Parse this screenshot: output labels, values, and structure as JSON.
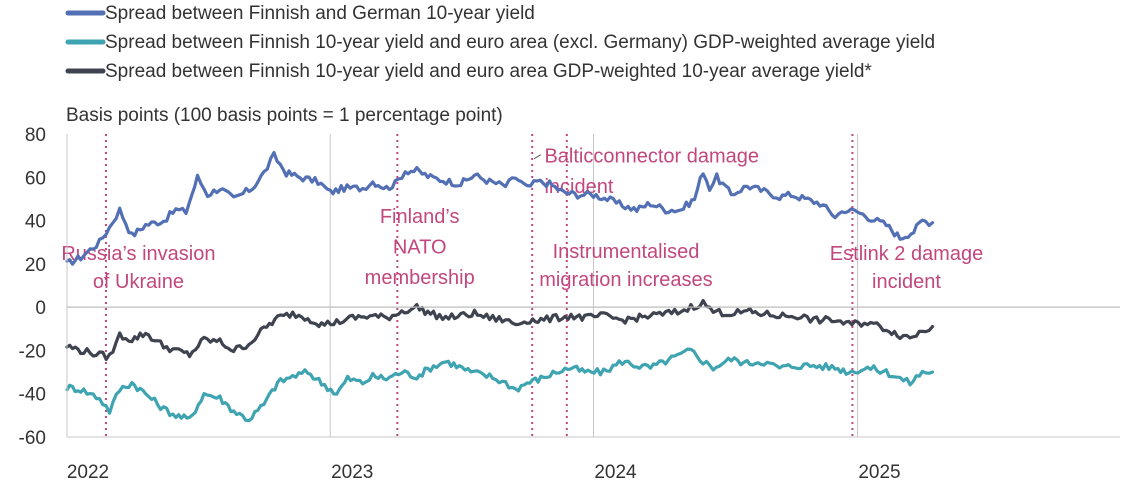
{
  "colors": {
    "de_spread": "#5470b5",
    "ea_ex_de_spread": "#3fa4b1",
    "ea_spread": "#3f4350",
    "event": "#c2477e",
    "axis": "#333333",
    "grid": "#c7c7c7"
  },
  "chart_data": {
    "type": "line",
    "unit_label": "Basis points (100 basis points = 1 percentage point)",
    "ylim": [
      -60,
      80
    ],
    "yticks": [
      "80",
      "60",
      "40",
      "20",
      "0",
      "-20",
      "-40",
      "-60"
    ],
    "xlim": [
      "2022-01-01",
      "2025-12-31"
    ],
    "xticks": [
      "2022",
      "2023",
      "2024",
      "2025"
    ],
    "legend_position": "top",
    "grid": "vertical year lines",
    "series": [
      {
        "name": "Spread between Finnish and German 10-year yield",
        "color": "#5470b5",
        "points": [
          [
            "2022-01-01",
            20
          ],
          [
            "2022-01-20",
            23
          ],
          [
            "2022-02-15",
            30
          ],
          [
            "2022-03-01",
            37
          ],
          [
            "2022-03-15",
            45
          ],
          [
            "2022-04-01",
            33
          ],
          [
            "2022-04-20",
            38
          ],
          [
            "2022-05-15",
            40
          ],
          [
            "2022-06-01",
            45
          ],
          [
            "2022-06-15",
            44
          ],
          [
            "2022-07-01",
            60
          ],
          [
            "2022-07-15",
            52
          ],
          [
            "2022-08-01",
            55
          ],
          [
            "2022-08-20",
            50
          ],
          [
            "2022-09-15",
            55
          ],
          [
            "2022-10-01",
            62
          ],
          [
            "2022-10-15",
            70
          ],
          [
            "2022-11-01",
            62
          ],
          [
            "2022-11-20",
            60
          ],
          [
            "2022-12-15",
            58
          ],
          [
            "2023-01-01",
            53
          ],
          [
            "2023-01-20",
            55
          ],
          [
            "2023-02-15",
            55
          ],
          [
            "2023-03-01",
            58
          ],
          [
            "2023-03-20",
            55
          ],
          [
            "2023-04-01",
            57
          ],
          [
            "2023-04-15",
            63
          ],
          [
            "2023-05-01",
            63
          ],
          [
            "2023-05-20",
            60
          ],
          [
            "2023-06-15",
            58
          ],
          [
            "2023-07-01",
            57
          ],
          [
            "2023-07-20",
            61
          ],
          [
            "2023-08-10",
            58
          ],
          [
            "2023-09-01",
            56
          ],
          [
            "2023-09-15",
            60
          ],
          [
            "2023-10-01",
            55
          ],
          [
            "2023-10-15",
            58
          ],
          [
            "2023-11-01",
            57
          ],
          [
            "2023-11-20",
            53
          ],
          [
            "2023-12-10",
            52
          ],
          [
            "2024-01-01",
            52
          ],
          [
            "2024-01-20",
            50
          ],
          [
            "2024-02-10",
            47
          ],
          [
            "2024-03-01",
            45
          ],
          [
            "2024-03-20",
            48
          ],
          [
            "2024-04-10",
            45
          ],
          [
            "2024-05-01",
            45
          ],
          [
            "2024-05-20",
            50
          ],
          [
            "2024-06-01",
            63
          ],
          [
            "2024-06-10",
            55
          ],
          [
            "2024-06-20",
            60
          ],
          [
            "2024-07-10",
            52
          ],
          [
            "2024-08-01",
            56
          ],
          [
            "2024-08-20",
            54
          ],
          [
            "2024-09-15",
            51
          ],
          [
            "2024-10-01",
            52
          ],
          [
            "2024-10-20",
            50
          ],
          [
            "2024-11-10",
            48
          ],
          [
            "2024-12-01",
            42
          ],
          [
            "2024-12-15",
            45
          ],
          [
            "2025-01-01",
            44
          ],
          [
            "2025-01-20",
            41
          ],
          [
            "2025-02-10",
            38
          ],
          [
            "2025-03-01",
            32
          ],
          [
            "2025-03-20",
            35
          ],
          [
            "2025-04-01",
            40
          ],
          [
            "2025-04-15",
            39
          ]
        ]
      },
      {
        "name": "Spread between Finnish 10-year yield and euro area (excl. Germany) GDP-weighted average yield",
        "color": "#3fa4b1",
        "points": [
          [
            "2022-01-01",
            -37
          ],
          [
            "2022-01-20",
            -38
          ],
          [
            "2022-02-15",
            -42
          ],
          [
            "2022-03-01",
            -48
          ],
          [
            "2022-03-15",
            -38
          ],
          [
            "2022-04-01",
            -35
          ],
          [
            "2022-04-20",
            -40
          ],
          [
            "2022-05-15",
            -47
          ],
          [
            "2022-06-01",
            -50
          ],
          [
            "2022-06-20",
            -52
          ],
          [
            "2022-07-10",
            -40
          ],
          [
            "2022-08-01",
            -42
          ],
          [
            "2022-08-20",
            -48
          ],
          [
            "2022-09-10",
            -52
          ],
          [
            "2022-10-01",
            -45
          ],
          [
            "2022-10-20",
            -35
          ],
          [
            "2022-11-10",
            -32
          ],
          [
            "2022-12-01",
            -30
          ],
          [
            "2022-12-20",
            -35
          ],
          [
            "2023-01-10",
            -40
          ],
          [
            "2023-01-25",
            -33
          ],
          [
            "2023-02-15",
            -35
          ],
          [
            "2023-03-01",
            -32
          ],
          [
            "2023-03-20",
            -33
          ],
          [
            "2023-04-10",
            -30
          ],
          [
            "2023-05-01",
            -32
          ],
          [
            "2023-05-20",
            -28
          ],
          [
            "2023-06-10",
            -25
          ],
          [
            "2023-06-25",
            -27
          ],
          [
            "2023-07-15",
            -30
          ],
          [
            "2023-08-10",
            -32
          ],
          [
            "2023-09-01",
            -35
          ],
          [
            "2023-09-15",
            -38
          ],
          [
            "2023-10-01",
            -35
          ],
          [
            "2023-10-20",
            -33
          ],
          [
            "2023-11-10",
            -30
          ],
          [
            "2023-12-01",
            -28
          ],
          [
            "2023-12-20",
            -30
          ],
          [
            "2024-01-15",
            -30
          ],
          [
            "2024-02-10",
            -25
          ],
          [
            "2024-03-01",
            -27
          ],
          [
            "2024-03-20",
            -28
          ],
          [
            "2024-04-10",
            -25
          ],
          [
            "2024-05-01",
            -22
          ],
          [
            "2024-05-15",
            -20
          ],
          [
            "2024-06-01",
            -25
          ],
          [
            "2024-06-15",
            -28
          ],
          [
            "2024-07-10",
            -24
          ],
          [
            "2024-08-01",
            -26
          ],
          [
            "2024-08-20",
            -25
          ],
          [
            "2024-09-15",
            -28
          ],
          [
            "2024-10-10",
            -27
          ],
          [
            "2024-11-01",
            -27
          ],
          [
            "2024-12-01",
            -28
          ],
          [
            "2024-12-20",
            -30
          ],
          [
            "2025-01-15",
            -28
          ],
          [
            "2025-02-10",
            -30
          ],
          [
            "2025-03-01",
            -33
          ],
          [
            "2025-03-15",
            -35
          ],
          [
            "2025-04-01",
            -30
          ],
          [
            "2025-04-15",
            -30
          ]
        ]
      },
      {
        "name": "Spread between Finnish 10-year yield and euro area GDP-weighted 10-year average yield*",
        "color": "#3f4350",
        "points": [
          [
            "2022-01-01",
            -18
          ],
          [
            "2022-01-20",
            -20
          ],
          [
            "2022-02-15",
            -22
          ],
          [
            "2022-03-01",
            -23
          ],
          [
            "2022-03-15",
            -13
          ],
          [
            "2022-04-01",
            -15
          ],
          [
            "2022-04-20",
            -12
          ],
          [
            "2022-05-15",
            -18
          ],
          [
            "2022-06-01",
            -20
          ],
          [
            "2022-06-20",
            -22
          ],
          [
            "2022-07-10",
            -15
          ],
          [
            "2022-08-01",
            -16
          ],
          [
            "2022-08-20",
            -20
          ],
          [
            "2022-09-10",
            -17
          ],
          [
            "2022-10-01",
            -10
          ],
          [
            "2022-10-20",
            -5
          ],
          [
            "2022-11-10",
            -3
          ],
          [
            "2022-12-01",
            -5
          ],
          [
            "2022-12-20",
            -8
          ],
          [
            "2023-01-10",
            -7
          ],
          [
            "2023-02-01",
            -5
          ],
          [
            "2023-03-01",
            -4
          ],
          [
            "2023-03-20",
            -5
          ],
          [
            "2023-04-10",
            -2
          ],
          [
            "2023-05-01",
            0
          ],
          [
            "2023-05-20",
            -3
          ],
          [
            "2023-06-10",
            -5
          ],
          [
            "2023-07-01",
            -4
          ],
          [
            "2023-07-20",
            -3
          ],
          [
            "2023-08-10",
            -5
          ],
          [
            "2023-09-01",
            -6
          ],
          [
            "2023-09-15",
            -8
          ],
          [
            "2023-10-01",
            -6
          ],
          [
            "2023-10-20",
            -6
          ],
          [
            "2023-11-10",
            -5
          ],
          [
            "2023-12-01",
            -4
          ],
          [
            "2023-12-20",
            -5
          ],
          [
            "2024-01-15",
            -4
          ],
          [
            "2024-02-10",
            -6
          ],
          [
            "2024-03-01",
            -5
          ],
          [
            "2024-03-20",
            -4
          ],
          [
            "2024-04-10",
            -3
          ],
          [
            "2024-05-01",
            -2
          ],
          [
            "2024-05-15",
            0
          ],
          [
            "2024-06-01",
            2
          ],
          [
            "2024-06-15",
            -2
          ],
          [
            "2024-07-10",
            -3
          ],
          [
            "2024-08-01",
            -2
          ],
          [
            "2024-08-20",
            -3
          ],
          [
            "2024-09-15",
            -4
          ],
          [
            "2024-10-10",
            -4
          ],
          [
            "2024-11-01",
            -6
          ],
          [
            "2024-12-01",
            -6
          ],
          [
            "2024-12-20",
            -8
          ],
          [
            "2025-01-15",
            -7
          ],
          [
            "2025-02-10",
            -10
          ],
          [
            "2025-03-01",
            -13
          ],
          [
            "2025-03-15",
            -14
          ],
          [
            "2025-04-01",
            -11
          ],
          [
            "2025-04-15",
            -9
          ]
        ]
      }
    ],
    "events": [
      {
        "date": "2022-02-24",
        "label_lines": [
          "Russia’s invasion",
          "of Ukraine"
        ],
        "label_x": "2022-04-10",
        "label_y": [
          25,
          12
        ]
      },
      {
        "date": "2023-04-04",
        "label_lines": [
          "Finland’s",
          "NATO",
          "membership"
        ],
        "label_x": "2023-05-05",
        "label_y": [
          42,
          28,
          14
        ]
      },
      {
        "date": "2023-10-08",
        "label_lines": [
          "Balticconnector damage",
          "incident"
        ],
        "label_x": "2023-10-25",
        "label_y": [
          70,
          56
        ],
        "label_anchor": "start",
        "leader_to": "2023-10-20"
      },
      {
        "date": "2023-11-25",
        "label_lines": [
          "Instrumentalised",
          "migration increases"
        ],
        "label_x": "2024-02-15",
        "label_y": [
          26,
          13
        ]
      },
      {
        "date": "2024-12-25",
        "label_lines": [
          "Estlink 2 damage",
          "incident"
        ],
        "label_x": "2025-03-10",
        "label_y": [
          25,
          12
        ]
      }
    ]
  }
}
